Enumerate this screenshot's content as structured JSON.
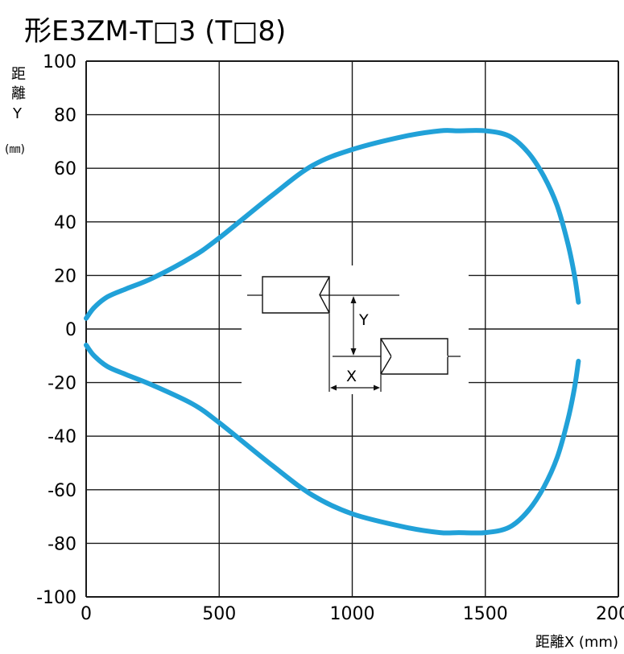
{
  "chart_data": {
    "type": "line",
    "title": "形E3ZM-T□3 (T□8)",
    "xlabel": "距離X (mm)",
    "ylabel_chars": [
      "距",
      "離",
      "Y",
      "(㎜)"
    ],
    "xlim": [
      0,
      2000
    ],
    "ylim": [
      -100,
      100
    ],
    "xticks": [
      0,
      500,
      1000,
      1500,
      2000
    ],
    "yticks": [
      100,
      80,
      60,
      40,
      20,
      0,
      -20,
      -40,
      -60,
      -80,
      -100
    ],
    "grid": true,
    "series": [
      {
        "color": "#21a1d8",
        "x": [
          1850,
          1835,
          1810,
          1770,
          1720,
          1660,
          1590,
          1500,
          1400,
          1330,
          1200,
          1000,
          850,
          700,
          500,
          400,
          250,
          150,
          80,
          30,
          0
        ],
        "y": [
          10,
          20,
          32,
          46,
          57,
          66,
          72,
          74,
          74,
          74,
          72,
          67,
          61,
          50,
          34,
          27,
          19,
          15,
          12,
          8,
          4
        ]
      },
      {
        "color": "#21a1d8",
        "x": [
          1850,
          1835,
          1810,
          1770,
          1720,
          1660,
          1590,
          1500,
          1400,
          1330,
          1200,
          1000,
          850,
          700,
          500,
          400,
          250,
          150,
          80,
          30,
          0
        ],
        "y": [
          -12,
          -22,
          -34,
          -48,
          -59,
          -68,
          -74,
          -76,
          -76,
          -76,
          -74,
          -69,
          -62,
          -51,
          -35,
          -28,
          -21,
          -17,
          -14,
          -10,
          -6
        ]
      }
    ],
    "diagram": {
      "y_label": "Y",
      "x_label": "X"
    }
  }
}
